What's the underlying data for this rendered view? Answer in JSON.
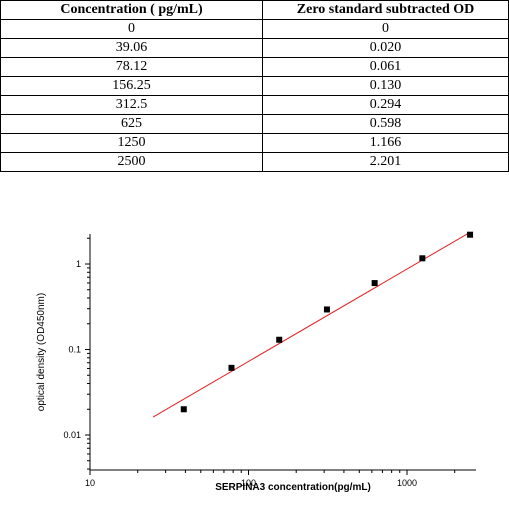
{
  "table": {
    "headers": [
      "Concentration ( pg/mL)",
      "Zero standard subtracted OD"
    ],
    "rows": [
      [
        "0",
        "0"
      ],
      [
        "39.06",
        "0.020"
      ],
      [
        "78.12",
        "0.061"
      ],
      [
        "156.25",
        "0.130"
      ],
      [
        "312.5",
        "0.294"
      ],
      [
        "625",
        "0.598"
      ],
      [
        "1250",
        "1.166"
      ],
      [
        "2500",
        "2.201"
      ]
    ]
  },
  "chart_data": {
    "type": "scatter",
    "xlabel": "SERPINA3  concentration(pg/mL)",
    "ylabel": "optical density (OD450nm)",
    "xscale": "log",
    "yscale": "log",
    "xlim": [
      10,
      2500
    ],
    "ylim": [
      0.005,
      2.5
    ],
    "x_ticks": [
      10,
      100,
      1000
    ],
    "x_tick_labels": [
      "10",
      "100",
      "1000"
    ],
    "y_ticks": [
      0.01,
      0.1,
      1
    ],
    "y_tick_labels": [
      "0.01",
      "0.1",
      "1"
    ],
    "grid": false,
    "points": [
      {
        "x": 39.06,
        "y": 0.02
      },
      {
        "x": 78.12,
        "y": 0.061
      },
      {
        "x": 156.25,
        "y": 0.13
      },
      {
        "x": 312.5,
        "y": 0.294
      },
      {
        "x": 625,
        "y": 0.598
      },
      {
        "x": 1250,
        "y": 1.166
      },
      {
        "x": 2500,
        "y": 2.201
      }
    ],
    "fit_line": {
      "x": [
        25,
        2500
      ],
      "y": [
        0.0162,
        2.35
      ],
      "color": "#e02020"
    },
    "marker_color": "#000000"
  }
}
